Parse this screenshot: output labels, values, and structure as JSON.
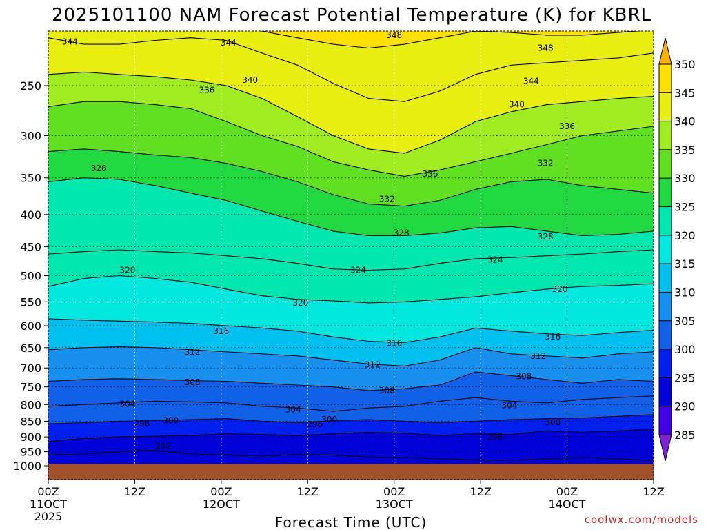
{
  "chart_data": {
    "type": "heatmap",
    "title": "2025101100 NAM Forecast Potential Temperature (K) for KBRL",
    "xlabel": "Forecast Time (UTC)",
    "ylabel": "",
    "credit": "coolwx.com/models",
    "x_ticks": [
      {
        "hours": 0,
        "l1": "00Z",
        "l2": "11OCT",
        "l3": "2025"
      },
      {
        "hours": 12,
        "l1": "12Z",
        "l2": "",
        "l3": ""
      },
      {
        "hours": 24,
        "l1": "00Z",
        "l2": "12OCT",
        "l3": ""
      },
      {
        "hours": 36,
        "l1": "12Z",
        "l2": "",
        "l3": ""
      },
      {
        "hours": 48,
        "l1": "00Z",
        "l2": "13OCT",
        "l3": ""
      },
      {
        "hours": 60,
        "l1": "12Z",
        "l2": "",
        "l3": ""
      },
      {
        "hours": 72,
        "l1": "00Z",
        "l2": "14OCT",
        "l3": ""
      },
      {
        "hours": 84,
        "l1": "12Z",
        "l2": "",
        "l3": ""
      }
    ],
    "xlim": [
      0,
      84
    ],
    "y_ticks": [
      250,
      300,
      350,
      400,
      450,
      500,
      550,
      600,
      650,
      700,
      750,
      800,
      850,
      900,
      950,
      1000
    ],
    "ylim_hpa": [
      200,
      1000
    ],
    "colorbar": {
      "levels": [
        285,
        290,
        295,
        300,
        305,
        310,
        315,
        320,
        325,
        330,
        335,
        340,
        345,
        350
      ],
      "colors": [
        "#8020d8",
        "#4000e8",
        "#0000d8",
        "#0020f0",
        "#1060e8",
        "#1890f0",
        "#00c0f0",
        "#00e8e0",
        "#00e8b0",
        "#20d840",
        "#60e020",
        "#a0ec20",
        "#e8ee10",
        "#ffe000",
        "#ffb000"
      ]
    },
    "contours": [
      {
        "value": 292,
        "hpa": [
          962,
          958,
          950,
          945,
          958,
          962,
          965,
          960,
          962,
          968,
          970,
          975,
          978,
          980,
          975,
          970,
          975,
          980
        ]
      },
      {
        "value": 296,
        "hpa": [
          915,
          905,
          900,
          898,
          895,
          890,
          892,
          895,
          890,
          885,
          888,
          895,
          890,
          892,
          880,
          885,
          880,
          875
        ]
      },
      {
        "value": 300,
        "hpa": [
          858,
          855,
          850,
          848,
          845,
          842,
          850,
          855,
          848,
          845,
          850,
          855,
          850,
          845,
          842,
          840,
          835,
          830
        ]
      },
      {
        "value": 304,
        "hpa": [
          805,
          800,
          795,
          790,
          792,
          795,
          805,
          810,
          820,
          810,
          805,
          790,
          780,
          790,
          795,
          785,
          780,
          775
        ]
      },
      {
        "value": 308,
        "hpa": [
          735,
          730,
          728,
          730,
          733,
          735,
          740,
          745,
          750,
          760,
          755,
          745,
          710,
          720,
          730,
          740,
          730,
          735
        ]
      },
      {
        "value": 312,
        "hpa": [
          655,
          650,
          648,
          650,
          655,
          660,
          665,
          670,
          680,
          690,
          695,
          680,
          650,
          665,
          670,
          675,
          665,
          660
        ]
      },
      {
        "value": 316,
        "hpa": [
          585,
          588,
          590,
          592,
          595,
          600,
          605,
          612,
          625,
          635,
          638,
          625,
          605,
          612,
          618,
          622,
          615,
          610
        ]
      },
      {
        "value": 320,
        "hpa": [
          520,
          505,
          500,
          505,
          512,
          525,
          538,
          545,
          548,
          552,
          550,
          545,
          540,
          532,
          525,
          520,
          518,
          515
        ]
      },
      {
        "value": 324,
        "hpa": [
          462,
          458,
          455,
          458,
          460,
          465,
          470,
          478,
          488,
          490,
          488,
          478,
          470,
          468,
          465,
          462,
          458,
          455
        ]
      },
      {
        "value": 328,
        "hpa": [
          355,
          350,
          352,
          360,
          370,
          380,
          395,
          410,
          425,
          432,
          432,
          428,
          420,
          418,
          425,
          432,
          430,
          425
        ]
      },
      {
        "value": 332,
        "hpa": [
          318,
          315,
          318,
          322,
          325,
          332,
          342,
          355,
          372,
          385,
          388,
          380,
          365,
          355,
          352,
          360,
          365,
          370
        ]
      },
      {
        "value": 336,
        "hpa": [
          270,
          265,
          265,
          268,
          272,
          285,
          300,
          312,
          330,
          340,
          348,
          340,
          330,
          320,
          310,
          300,
          295,
          290
        ]
      },
      {
        "value": 340,
        "hpa": [
          240,
          238,
          240,
          242,
          245,
          250,
          262,
          280,
          300,
          315,
          320,
          305,
          285,
          275,
          268,
          265,
          262,
          260
        ]
      },
      {
        "value": 344,
        "hpa": [
          210,
          215,
          215,
          212,
          210,
          212,
          222,
          232,
          248,
          262,
          265,
          255,
          240,
          232,
          230,
          228,
          226,
          222
        ]
      },
      {
        "value": 348,
        "hpa": [
          198,
          200,
          200,
          199,
          198,
          200,
          205,
          210,
          215,
          218,
          215,
          210,
          205,
          206,
          208,
          208,
          206,
          204
        ]
      }
    ],
    "contour_labels": [
      {
        "text": "344",
        "hours": 3,
        "hpa": 213
      },
      {
        "text": "344",
        "hours": 25,
        "hpa": 214
      },
      {
        "text": "348",
        "hours": 48,
        "hpa": 208
      },
      {
        "text": "348",
        "hours": 69,
        "hpa": 218
      },
      {
        "text": "344",
        "hours": 67,
        "hpa": 246
      },
      {
        "text": "340",
        "hours": 28,
        "hpa": 245
      },
      {
        "text": "336",
        "hours": 22,
        "hpa": 254
      },
      {
        "text": "340",
        "hours": 65,
        "hpa": 268
      },
      {
        "text": "336",
        "hours": 72,
        "hpa": 290
      },
      {
        "text": "336",
        "hours": 53,
        "hpa": 345
      },
      {
        "text": "332",
        "hours": 69,
        "hpa": 332
      },
      {
        "text": "328",
        "hours": 7,
        "hpa": 338
      },
      {
        "text": "332",
        "hours": 47,
        "hpa": 378
      },
      {
        "text": "328",
        "hours": 49,
        "hpa": 428
      },
      {
        "text": "328",
        "hours": 69,
        "hpa": 434
      },
      {
        "text": "324",
        "hours": 43,
        "hpa": 490
      },
      {
        "text": "324",
        "hours": 62,
        "hpa": 472
      },
      {
        "text": "320",
        "hours": 11,
        "hpa": 490
      },
      {
        "text": "320",
        "hours": 35,
        "hpa": 552
      },
      {
        "text": "320",
        "hours": 71,
        "hpa": 525
      },
      {
        "text": "316",
        "hours": 24,
        "hpa": 612
      },
      {
        "text": "316",
        "hours": 48,
        "hpa": 640
      },
      {
        "text": "316",
        "hours": 70,
        "hpa": 625
      },
      {
        "text": "312",
        "hours": 20,
        "hpa": 660
      },
      {
        "text": "312",
        "hours": 45,
        "hpa": 692
      },
      {
        "text": "312",
        "hours": 68,
        "hpa": 670
      },
      {
        "text": "308",
        "hours": 20,
        "hpa": 738
      },
      {
        "text": "308",
        "hours": 47,
        "hpa": 760
      },
      {
        "text": "308",
        "hours": 66,
        "hpa": 722
      },
      {
        "text": "304",
        "hours": 11,
        "hpa": 798
      },
      {
        "text": "304",
        "hours": 34,
        "hpa": 815
      },
      {
        "text": "304",
        "hours": 64,
        "hpa": 802
      },
      {
        "text": "300",
        "hours": 17,
        "hpa": 848
      },
      {
        "text": "300",
        "hours": 39,
        "hpa": 845
      },
      {
        "text": "300",
        "hours": 70,
        "hpa": 855
      },
      {
        "text": "296",
        "hours": 13,
        "hpa": 858
      },
      {
        "text": "296",
        "hours": 37,
        "hpa": 860
      },
      {
        "text": "296",
        "hours": 62,
        "hpa": 900
      },
      {
        "text": "292",
        "hours": 16,
        "hpa": 930
      }
    ]
  }
}
